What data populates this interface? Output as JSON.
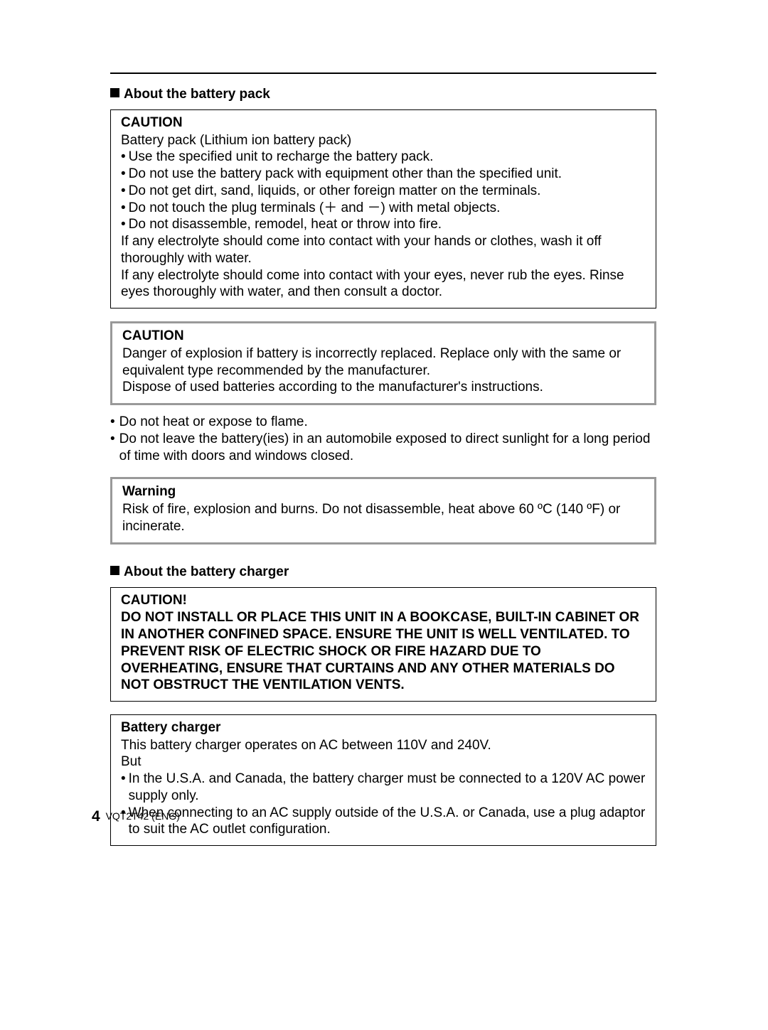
{
  "colors": {
    "text": "#000000",
    "background": "#ffffff",
    "box_border": "#000000",
    "graybox_border": "#999999"
  },
  "typography": {
    "body_font_size_pt": 14,
    "heading_weight": "bold",
    "font_family": "Arial"
  },
  "section1": {
    "title": "About the battery pack",
    "box1": {
      "heading": "CAUTION",
      "intro": "Battery pack (Lithium ion battery pack)",
      "bullets": [
        "Use the specified unit to recharge the battery pack.",
        "Do not use the battery pack with equipment other than the specified unit.",
        "Do not get dirt, sand, liquids, or other foreign matter on the terminals.",
        "Do not touch the plug terminals (＋ and －) with metal objects.",
        "Do not disassemble, remodel, heat or throw into fire."
      ],
      "para1": "If any electrolyte should come into contact with your hands or clothes, wash it off thoroughly with water.",
      "para2": "If any electrolyte should come into contact with your eyes, never rub the eyes. Rinse eyes thoroughly with water, and then consult a doctor."
    },
    "box2": {
      "heading": "CAUTION",
      "para1": "Danger of explosion if battery is incorrectly replaced. Replace only with the same or equivalent type recommended by the manufacturer.",
      "para2": "Dispose of used batteries according to the manufacturer's instructions."
    },
    "free_bullets": [
      "Do not heat or expose to flame.",
      "Do not leave the battery(ies) in an automobile exposed to direct sunlight for a long period of time with doors and windows closed."
    ],
    "box3": {
      "heading": "Warning",
      "para1": "Risk of fire, explosion and burns. Do not disassemble, heat above 60 ºC (140 ºF) or incinerate."
    }
  },
  "section2": {
    "title": "About the battery charger",
    "box1": {
      "heading": "CAUTION!",
      "bold_text": "DO NOT INSTALL OR PLACE THIS UNIT IN A BOOKCASE, BUILT-IN CABINET OR IN ANOTHER CONFINED SPACE. ENSURE THE UNIT IS WELL VENTILATED. TO PREVENT RISK OF ELECTRIC SHOCK OR FIRE HAZARD DUE TO OVERHEATING, ENSURE THAT CURTAINS AND ANY OTHER MATERIALS DO NOT OBSTRUCT THE VENTILATION VENTS."
    },
    "box2": {
      "heading": "Battery charger",
      "para1": "This battery charger operates on AC between 110V and 240V.",
      "para2": "But",
      "bullets": [
        "In the U.S.A. and Canada, the battery charger must be connected to a 120V AC power supply only.",
        "When connecting to an AC supply outside of the U.S.A. or Canada, use a plug adaptor to suit the AC outlet configuration."
      ]
    }
  },
  "footer": {
    "page_number": "4",
    "doc_code": "VQT2T42 (ENG)"
  }
}
